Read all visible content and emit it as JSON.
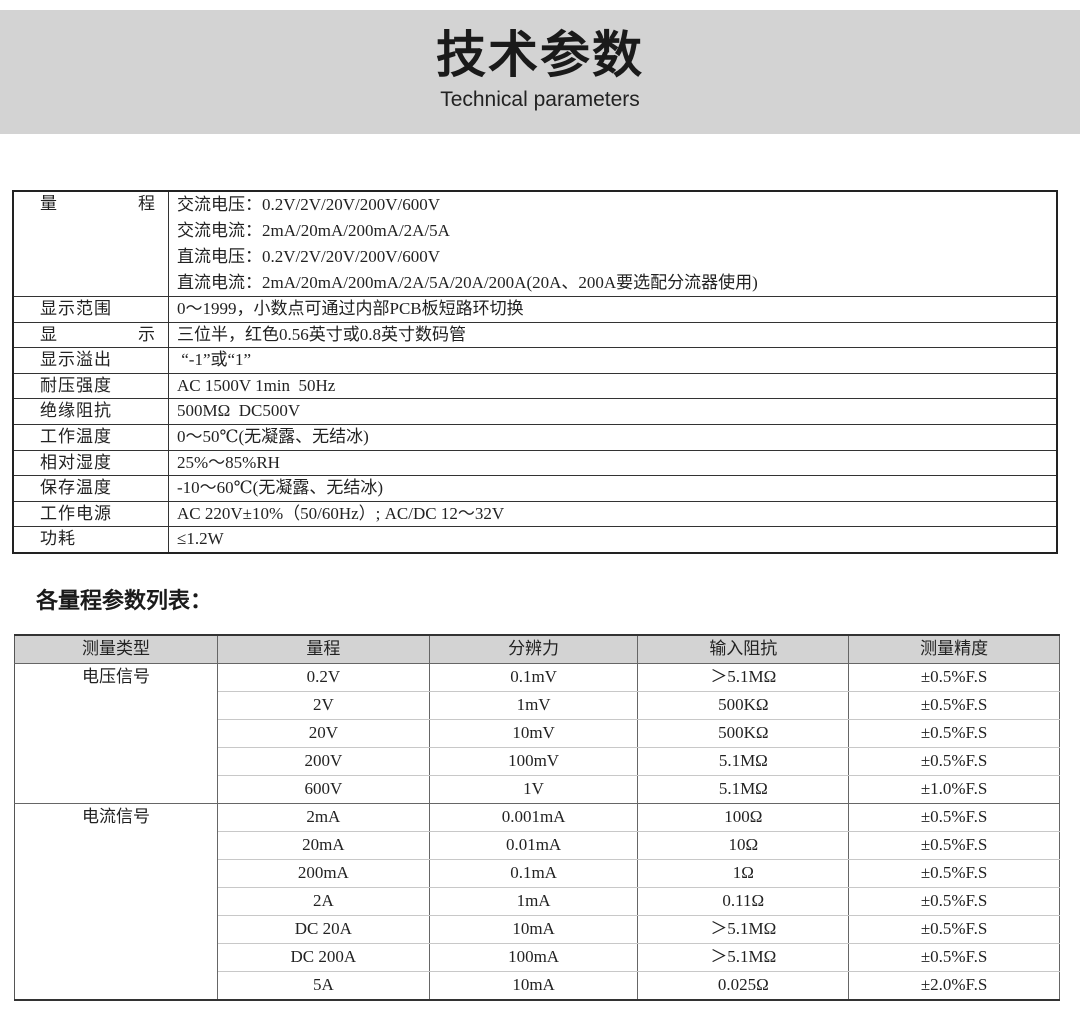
{
  "header": {
    "title": "技术参数",
    "subtitle": "Technical parameters"
  },
  "spec_table": {
    "range": {
      "label_a": "量",
      "label_b": "程",
      "lines": [
        "交流电压：0.2V/2V/20V/200V/600V",
        "交流电流：2mA/20mA/200mA/2A/5A",
        "直流电压：0.2V/2V/20V/200V/600V",
        "直流电流：2mA/20mA/200mA/2A/5A/20A/200A(20A、200A要选配分流器使用)"
      ]
    },
    "display_label_a": "显",
    "display_label_b": "示",
    "rows": [
      {
        "label": "显示范围",
        "value": "0～1999，小数点可通过内部PCB板短路环切换"
      },
      {
        "label": "显示",
        "value": "三位半，红色0.56英寸或0.8英寸数码管"
      },
      {
        "label": "显示溢出",
        "value": " “-1”或“1”"
      },
      {
        "label": "耐压强度",
        "value": "AC 1500V 1min  50Hz"
      },
      {
        "label": "绝缘阻抗",
        "value": "500MΩ  DC500V"
      },
      {
        "label": "工作温度",
        "value": "0～50℃(无凝露、无结冰)"
      },
      {
        "label": "相对湿度",
        "value": "25%～85%RH"
      },
      {
        "label": "保存温度",
        "value": "-10～60℃(无凝露、无结冰)"
      },
      {
        "label": "工作电源",
        "value": "AC 220V±10%（50/60Hz）; AC/DC 12～32V"
      },
      {
        "label": "功耗",
        "value": "≤1.2W"
      }
    ]
  },
  "range_section": {
    "title": "各量程参数列表：",
    "headers": [
      "测量类型",
      "量程",
      "分辨力",
      "输入阻抗",
      "测量精度"
    ],
    "groups": [
      {
        "type": "电压信号",
        "rows": [
          [
            "0.2V",
            "0.1mV",
            "＞5.1MΩ",
            "±0.5%F.S"
          ],
          [
            "2V",
            "1mV",
            "500KΩ",
            "±0.5%F.S"
          ],
          [
            "20V",
            "10mV",
            "500KΩ",
            "±0.5%F.S"
          ],
          [
            "200V",
            "100mV",
            "5.1MΩ",
            "±0.5%F.S"
          ],
          [
            "600V",
            "1V",
            "5.1MΩ",
            "±1.0%F.S"
          ]
        ]
      },
      {
        "type": "电流信号",
        "rows": [
          [
            "2mA",
            "0.001mA",
            "100Ω",
            "±0.5%F.S"
          ],
          [
            "20mA",
            "0.01mA",
            "10Ω",
            "±0.5%F.S"
          ],
          [
            "200mA",
            "0.1mA",
            "1Ω",
            "±0.5%F.S"
          ],
          [
            "2A",
            "1mA",
            "0.11Ω",
            "±0.5%F.S"
          ],
          [
            "DC 20A",
            "10mA",
            "＞5.1MΩ",
            "±0.5%F.S"
          ],
          [
            "DC 200A",
            "100mA",
            "＞5.1MΩ",
            "±0.5%F.S"
          ],
          [
            "5A",
            "10mA",
            "0.025Ω",
            "±2.0%F.S"
          ]
        ]
      }
    ]
  }
}
